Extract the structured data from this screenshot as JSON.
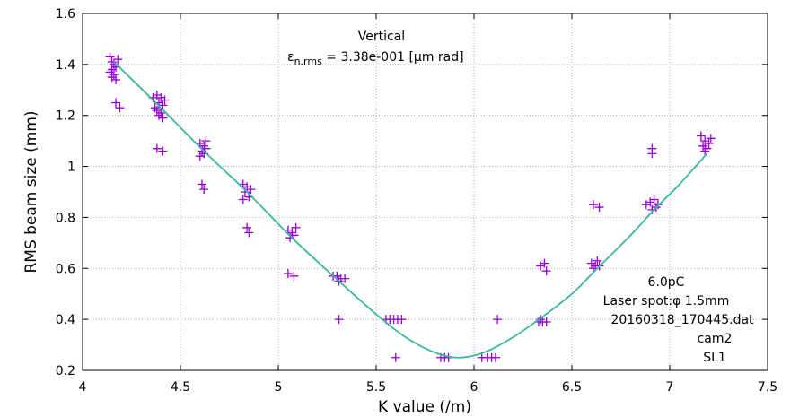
{
  "chart_data": {
    "type": "scatter",
    "title": "Vertical",
    "emittance_label": "ε",
    "emittance_subscript": "n.rms",
    "emittance_value": " = 3.38e-001  [μm rad]",
    "xlabel": "K value (/m)",
    "ylabel": "RMS beam size (mm)",
    "xlim": [
      4,
      7.5
    ],
    "ylim": [
      0.2,
      1.6
    ],
    "x_ticks": [
      "4",
      "4.5",
      "5",
      "5.5",
      "6",
      "6.5",
      "7",
      "7.5"
    ],
    "y_ticks": [
      "0.2",
      "0.4",
      "0.6",
      "0.8",
      "1",
      "1.2",
      "1.4",
      "1.6"
    ],
    "grid": true,
    "annotations": [
      "6.0pC",
      "Laser spot:φ 1.5mm",
      "20160318_170445.dat",
      "cam2",
      "SL1"
    ],
    "colors": {
      "points": "#9400d3",
      "fit": "#3cb8a0"
    },
    "points": [
      [
        4.14,
        1.43
      ],
      [
        4.15,
        1.41
      ],
      [
        4.16,
        1.4
      ],
      [
        4.15,
        1.38
      ],
      [
        4.16,
        1.36
      ],
      [
        4.15,
        1.35
      ],
      [
        4.17,
        1.34
      ],
      [
        4.14,
        1.37
      ],
      [
        4.17,
        1.39
      ],
      [
        4.18,
        1.42
      ],
      [
        4.17,
        1.25
      ],
      [
        4.19,
        1.23
      ],
      [
        4.36,
        1.27
      ],
      [
        4.38,
        1.28
      ],
      [
        4.4,
        1.27
      ],
      [
        4.39,
        1.25
      ],
      [
        4.41,
        1.24
      ],
      [
        4.38,
        1.22
      ],
      [
        4.4,
        1.21
      ],
      [
        4.39,
        1.2
      ],
      [
        4.41,
        1.19
      ],
      [
        4.37,
        1.23
      ],
      [
        4.42,
        1.26
      ],
      [
        4.38,
        1.07
      ],
      [
        4.41,
        1.06
      ],
      [
        4.6,
        1.09
      ],
      [
        4.62,
        1.08
      ],
      [
        4.63,
        1.07
      ],
      [
        4.61,
        1.06
      ],
      [
        4.62,
        1.05
      ],
      [
        4.6,
        1.04
      ],
      [
        4.63,
        1.1
      ],
      [
        4.61,
        0.93
      ],
      [
        4.62,
        0.91
      ],
      [
        4.82,
        0.93
      ],
      [
        4.84,
        0.92
      ],
      [
        4.86,
        0.91
      ],
      [
        4.83,
        0.9
      ],
      [
        4.85,
        0.88
      ],
      [
        4.82,
        0.87
      ],
      [
        4.84,
        0.76
      ],
      [
        4.85,
        0.74
      ],
      [
        5.05,
        0.75
      ],
      [
        5.07,
        0.74
      ],
      [
        5.08,
        0.73
      ],
      [
        5.06,
        0.72
      ],
      [
        5.09,
        0.76
      ],
      [
        5.05,
        0.58
      ],
      [
        5.08,
        0.57
      ],
      [
        5.28,
        0.57
      ],
      [
        5.3,
        0.57
      ],
      [
        5.32,
        0.56
      ],
      [
        5.34,
        0.56
      ],
      [
        5.31,
        0.55
      ],
      [
        5.31,
        0.4
      ],
      [
        5.55,
        0.4
      ],
      [
        5.57,
        0.4
      ],
      [
        5.59,
        0.4
      ],
      [
        5.61,
        0.4
      ],
      [
        5.63,
        0.4
      ],
      [
        5.6,
        0.25
      ],
      [
        5.83,
        0.25
      ],
      [
        5.85,
        0.25
      ],
      [
        5.87,
        0.25
      ],
      [
        6.04,
        0.25
      ],
      [
        6.07,
        0.25
      ],
      [
        6.09,
        0.25
      ],
      [
        6.11,
        0.25
      ],
      [
        6.12,
        0.4
      ],
      [
        6.33,
        0.39
      ],
      [
        6.35,
        0.39
      ],
      [
        6.37,
        0.39
      ],
      [
        6.34,
        0.4
      ],
      [
        6.34,
        0.61
      ],
      [
        6.36,
        0.62
      ],
      [
        6.37,
        0.59
      ],
      [
        6.6,
        0.62
      ],
      [
        6.62,
        0.61
      ],
      [
        6.64,
        0.61
      ],
      [
        6.61,
        0.6
      ],
      [
        6.63,
        0.63
      ],
      [
        6.61,
        0.85
      ],
      [
        6.64,
        0.84
      ],
      [
        6.88,
        0.85
      ],
      [
        6.9,
        0.86
      ],
      [
        6.92,
        0.87
      ],
      [
        6.93,
        0.84
      ],
      [
        6.91,
        0.83
      ],
      [
        6.94,
        0.85
      ],
      [
        6.91,
        1.07
      ],
      [
        6.91,
        1.05
      ],
      [
        7.16,
        1.12
      ],
      [
        7.18,
        1.1
      ],
      [
        7.2,
        1.09
      ],
      [
        7.17,
        1.08
      ],
      [
        7.19,
        1.07
      ],
      [
        7.21,
        1.11
      ],
      [
        7.18,
        1.06
      ]
    ],
    "fit": [
      [
        4.16,
        1.41
      ],
      [
        4.4,
        1.23
      ],
      [
        4.62,
        1.06
      ],
      [
        4.84,
        0.9
      ],
      [
        5.07,
        0.72
      ],
      [
        5.31,
        0.55
      ],
      [
        5.5,
        0.42
      ],
      [
        5.65,
        0.33
      ],
      [
        5.8,
        0.27
      ],
      [
        5.92,
        0.25
      ],
      [
        6.05,
        0.27
      ],
      [
        6.2,
        0.33
      ],
      [
        6.35,
        0.41
      ],
      [
        6.5,
        0.5
      ],
      [
        6.63,
        0.6
      ],
      [
        6.8,
        0.73
      ],
      [
        6.92,
        0.83
      ],
      [
        7.05,
        0.93
      ],
      [
        7.19,
        1.05
      ]
    ]
  }
}
